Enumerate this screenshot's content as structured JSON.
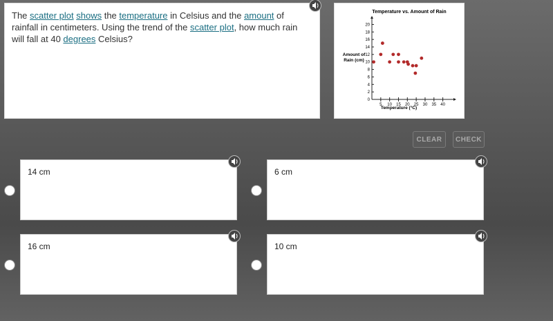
{
  "question": {
    "segments": [
      {
        "text": "The "
      },
      {
        "text": "scatter plot",
        "link": true
      },
      {
        "text": " "
      },
      {
        "text": "shows",
        "link": true
      },
      {
        "text": " the "
      },
      {
        "text": "temperature",
        "link": true
      },
      {
        "text": " in Celsius and the "
      },
      {
        "text": "amount",
        "link": true
      },
      {
        "text": " of rainfall in centimeters. Using the trend of the "
      },
      {
        "text": "scatter plot",
        "link": true
      },
      {
        "text": ", how much rain will fall at 40 "
      },
      {
        "text": "degrees",
        "link": true
      },
      {
        "text": " Celsius?"
      }
    ]
  },
  "chart_data": {
    "type": "scatter",
    "title": "Temperature vs. Amount of Rain",
    "xlabel": "Temperature (°C)",
    "ylabel": [
      "Amount of",
      "Rain (cm)"
    ],
    "x": [
      1,
      5,
      6,
      10,
      12,
      15,
      15,
      18,
      20,
      20.5,
      23,
      25,
      24.5,
      28
    ],
    "values": [
      10,
      12,
      15,
      10,
      12,
      12,
      10,
      10,
      10,
      9.4,
      9,
      9,
      7,
      11
    ],
    "color": "#b22a2a",
    "xlim": [
      0,
      46
    ],
    "xticks": [
      5,
      10,
      15,
      20,
      25,
      30,
      35,
      40
    ],
    "ylim": [
      0,
      21
    ],
    "yticks": [
      0,
      2,
      4,
      6,
      8,
      10,
      12,
      14,
      16,
      18,
      20
    ]
  },
  "buttons": [
    "CLEAR",
    "CHECK"
  ],
  "answers": [
    "14 cm",
    "6 cm",
    "16 cm",
    "10 cm"
  ]
}
